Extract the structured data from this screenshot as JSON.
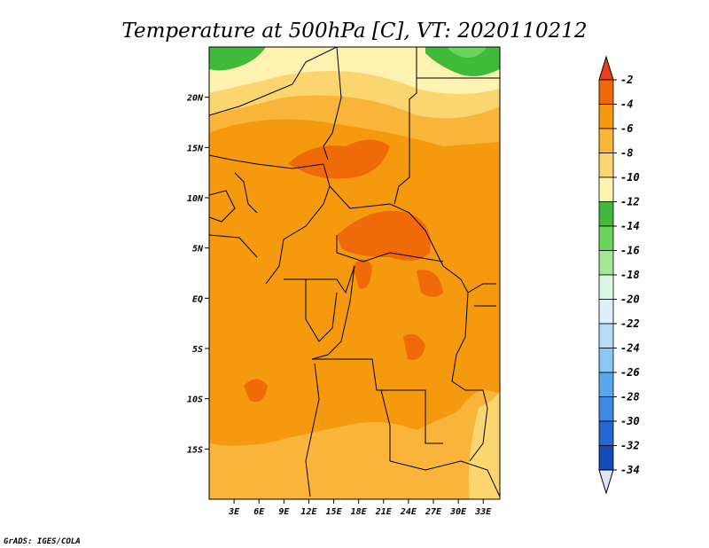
{
  "chart_data": {
    "type": "heatmap",
    "title": "Temperature at 500hPa [C], VT: 2020110212",
    "units": "C",
    "x_ticks": [
      "3E",
      "6E",
      "9E",
      "12E",
      "15E",
      "18E",
      "21E",
      "24E",
      "27E",
      "30E",
      "33E"
    ],
    "y_ticks": [
      "20N",
      "15N",
      "10N",
      "5N",
      "EQ",
      "5S",
      "10S",
      "15S"
    ],
    "x_range_deg": [
      0,
      35
    ],
    "y_range_deg": [
      -20,
      25
    ],
    "colorbar": {
      "labels": [
        "-2",
        "-4",
        "-6",
        "-8",
        "-10",
        "-12",
        "-14",
        "-16",
        "-18",
        "-20",
        "-22",
        "-24",
        "-26",
        "-28",
        "-30",
        "-32",
        "-34"
      ],
      "colors": [
        "#e8401a",
        "#f06a0a",
        "#f59a0f",
        "#f9b43a",
        "#fbd670",
        "#fdf2b0",
        "#3fba3b",
        "#6ad55a",
        "#a2e896",
        "#dcf8e4",
        "#dff0fa",
        "#b6dcf6",
        "#8cc6f2",
        "#5aa8ec",
        "#3d8ae3",
        "#2567d4",
        "#1548b8",
        "#0c2a8a"
      ],
      "overflow_high_color": "#e8401a",
      "overflow_low_color": "#e0e4f8"
    },
    "field_summary": {
      "dominant_range": "-4 to -6",
      "warmest_areas": "-2 to -4",
      "northern_margin": "-8 to -12",
      "northwest_corner": "-12 to -14",
      "northeast_corner": "-12 to -14"
    }
  },
  "credit": "GrADS: IGES/COLA"
}
